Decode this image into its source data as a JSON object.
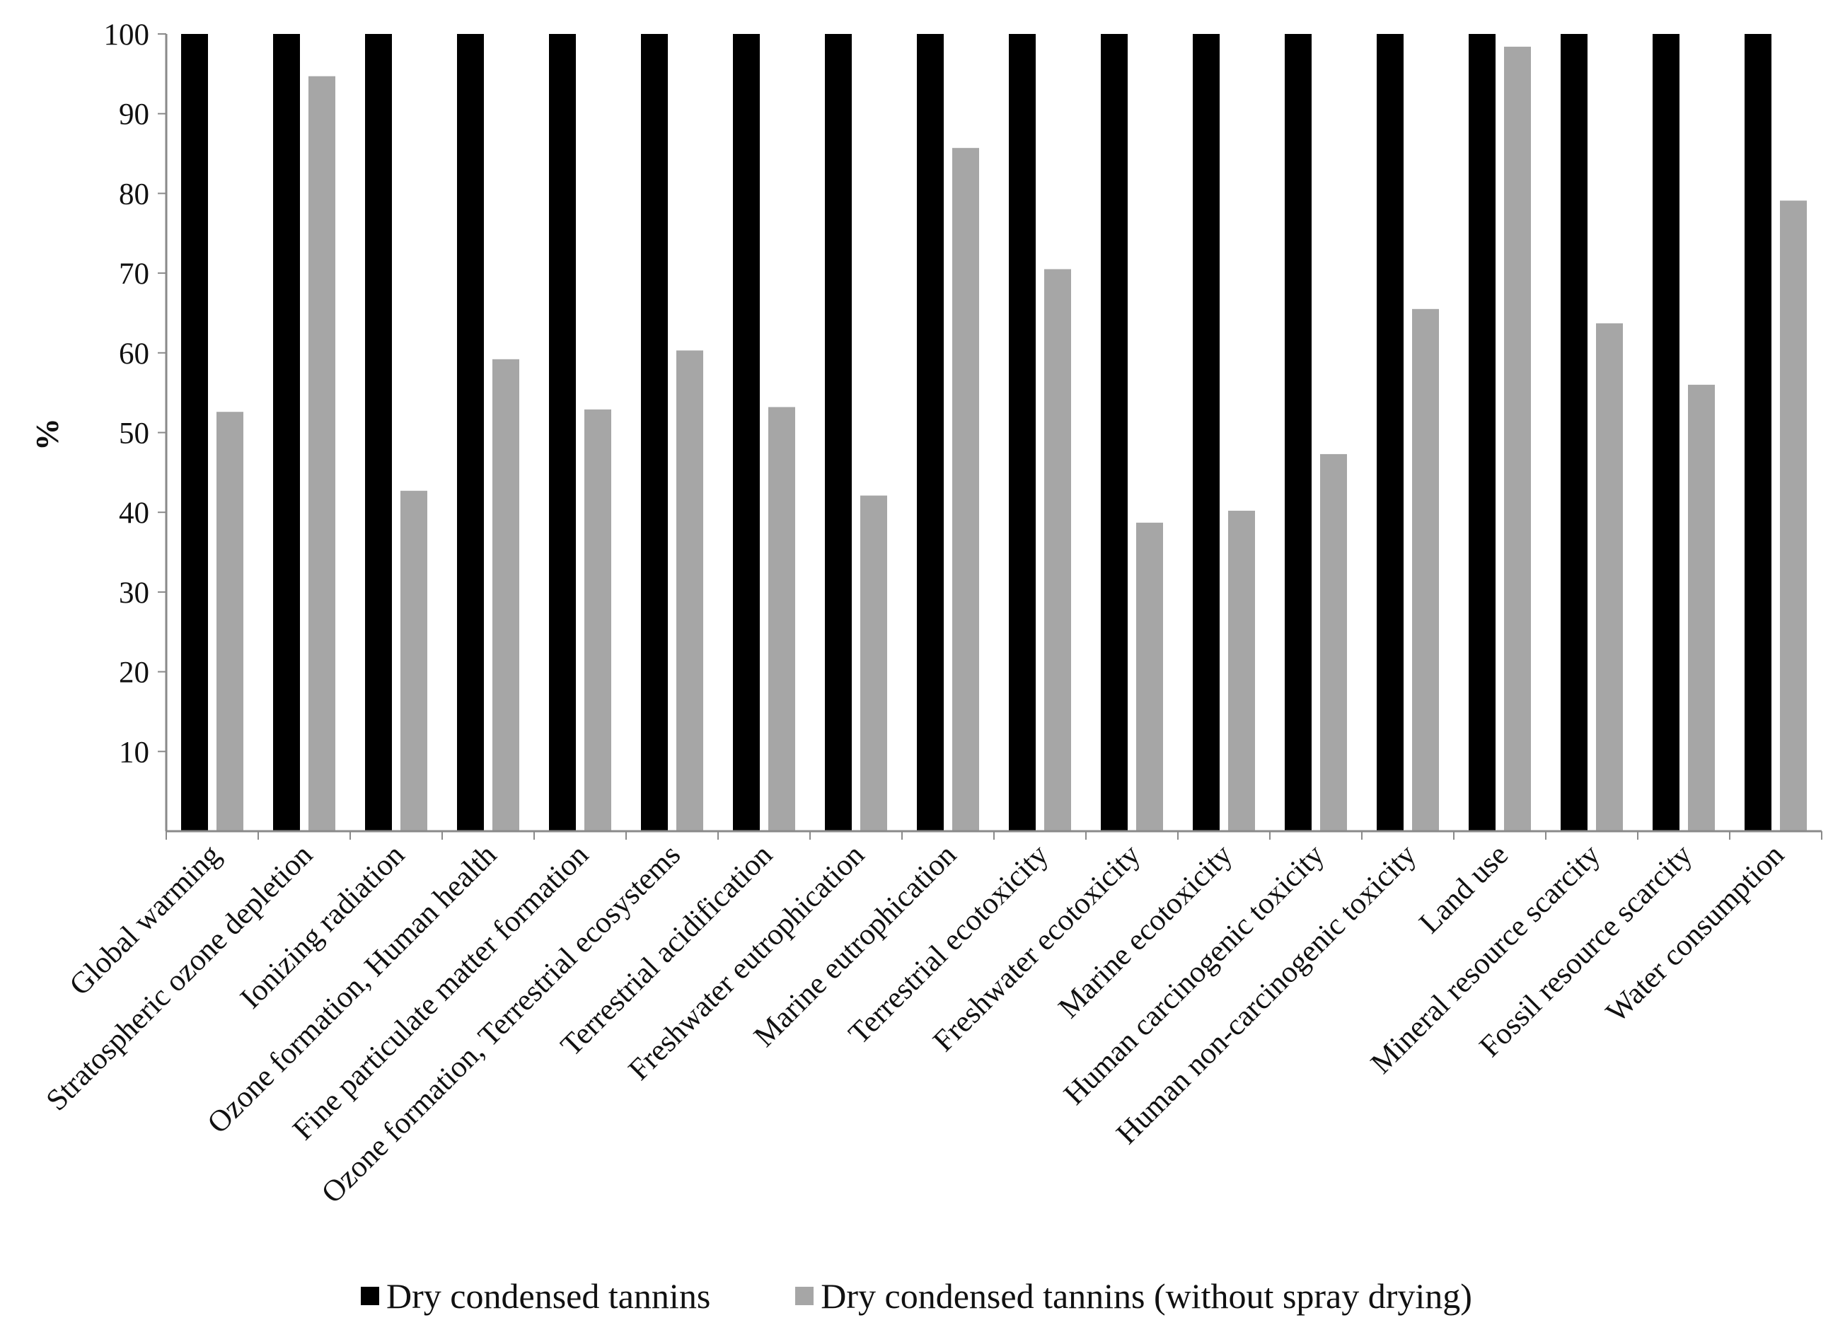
{
  "chart_data": {
    "type": "bar",
    "title": "",
    "xlabel": "",
    "ylabel": "%",
    "ylim": [
      0,
      100
    ],
    "yticks": [
      10,
      20,
      30,
      40,
      50,
      60,
      70,
      80,
      90,
      100
    ],
    "grid": false,
    "legend_position": "bottom",
    "categories": [
      "Global warming",
      "Stratospheric ozone depletion",
      "Ionizing radiation",
      "Ozone formation, Human health",
      "Fine particulate matter formation",
      "Ozone formation, Terrestrial ecosystems",
      "Terrestrial acidification",
      "Freshwater eutrophication",
      "Marine eutrophication",
      "Terrestrial ecotoxicity",
      "Freshwater ecotoxicity",
      "Marine ecotoxicity",
      "Human carcinogenic toxicity",
      "Human non-carcinogenic toxicity",
      "Land use",
      "Mineral resource scarcity",
      "Fossil resource scarcity",
      "Water consumption"
    ],
    "series": [
      {
        "name": "Dry condensed tannins",
        "color": "#000000",
        "values": [
          100,
          100,
          100,
          100,
          100,
          100,
          100,
          100,
          100,
          100,
          100,
          100,
          100,
          100,
          100,
          100,
          100,
          100
        ]
      },
      {
        "name": "Dry condensed tannins (without spray drying)",
        "color": "#a6a6a6",
        "values": [
          52.6,
          94.7,
          42.7,
          59.2,
          52.9,
          60.3,
          53.2,
          42.1,
          85.7,
          70.5,
          38.7,
          40.2,
          47.3,
          65.5,
          98.4,
          63.7,
          56,
          79.1
        ]
      }
    ]
  }
}
